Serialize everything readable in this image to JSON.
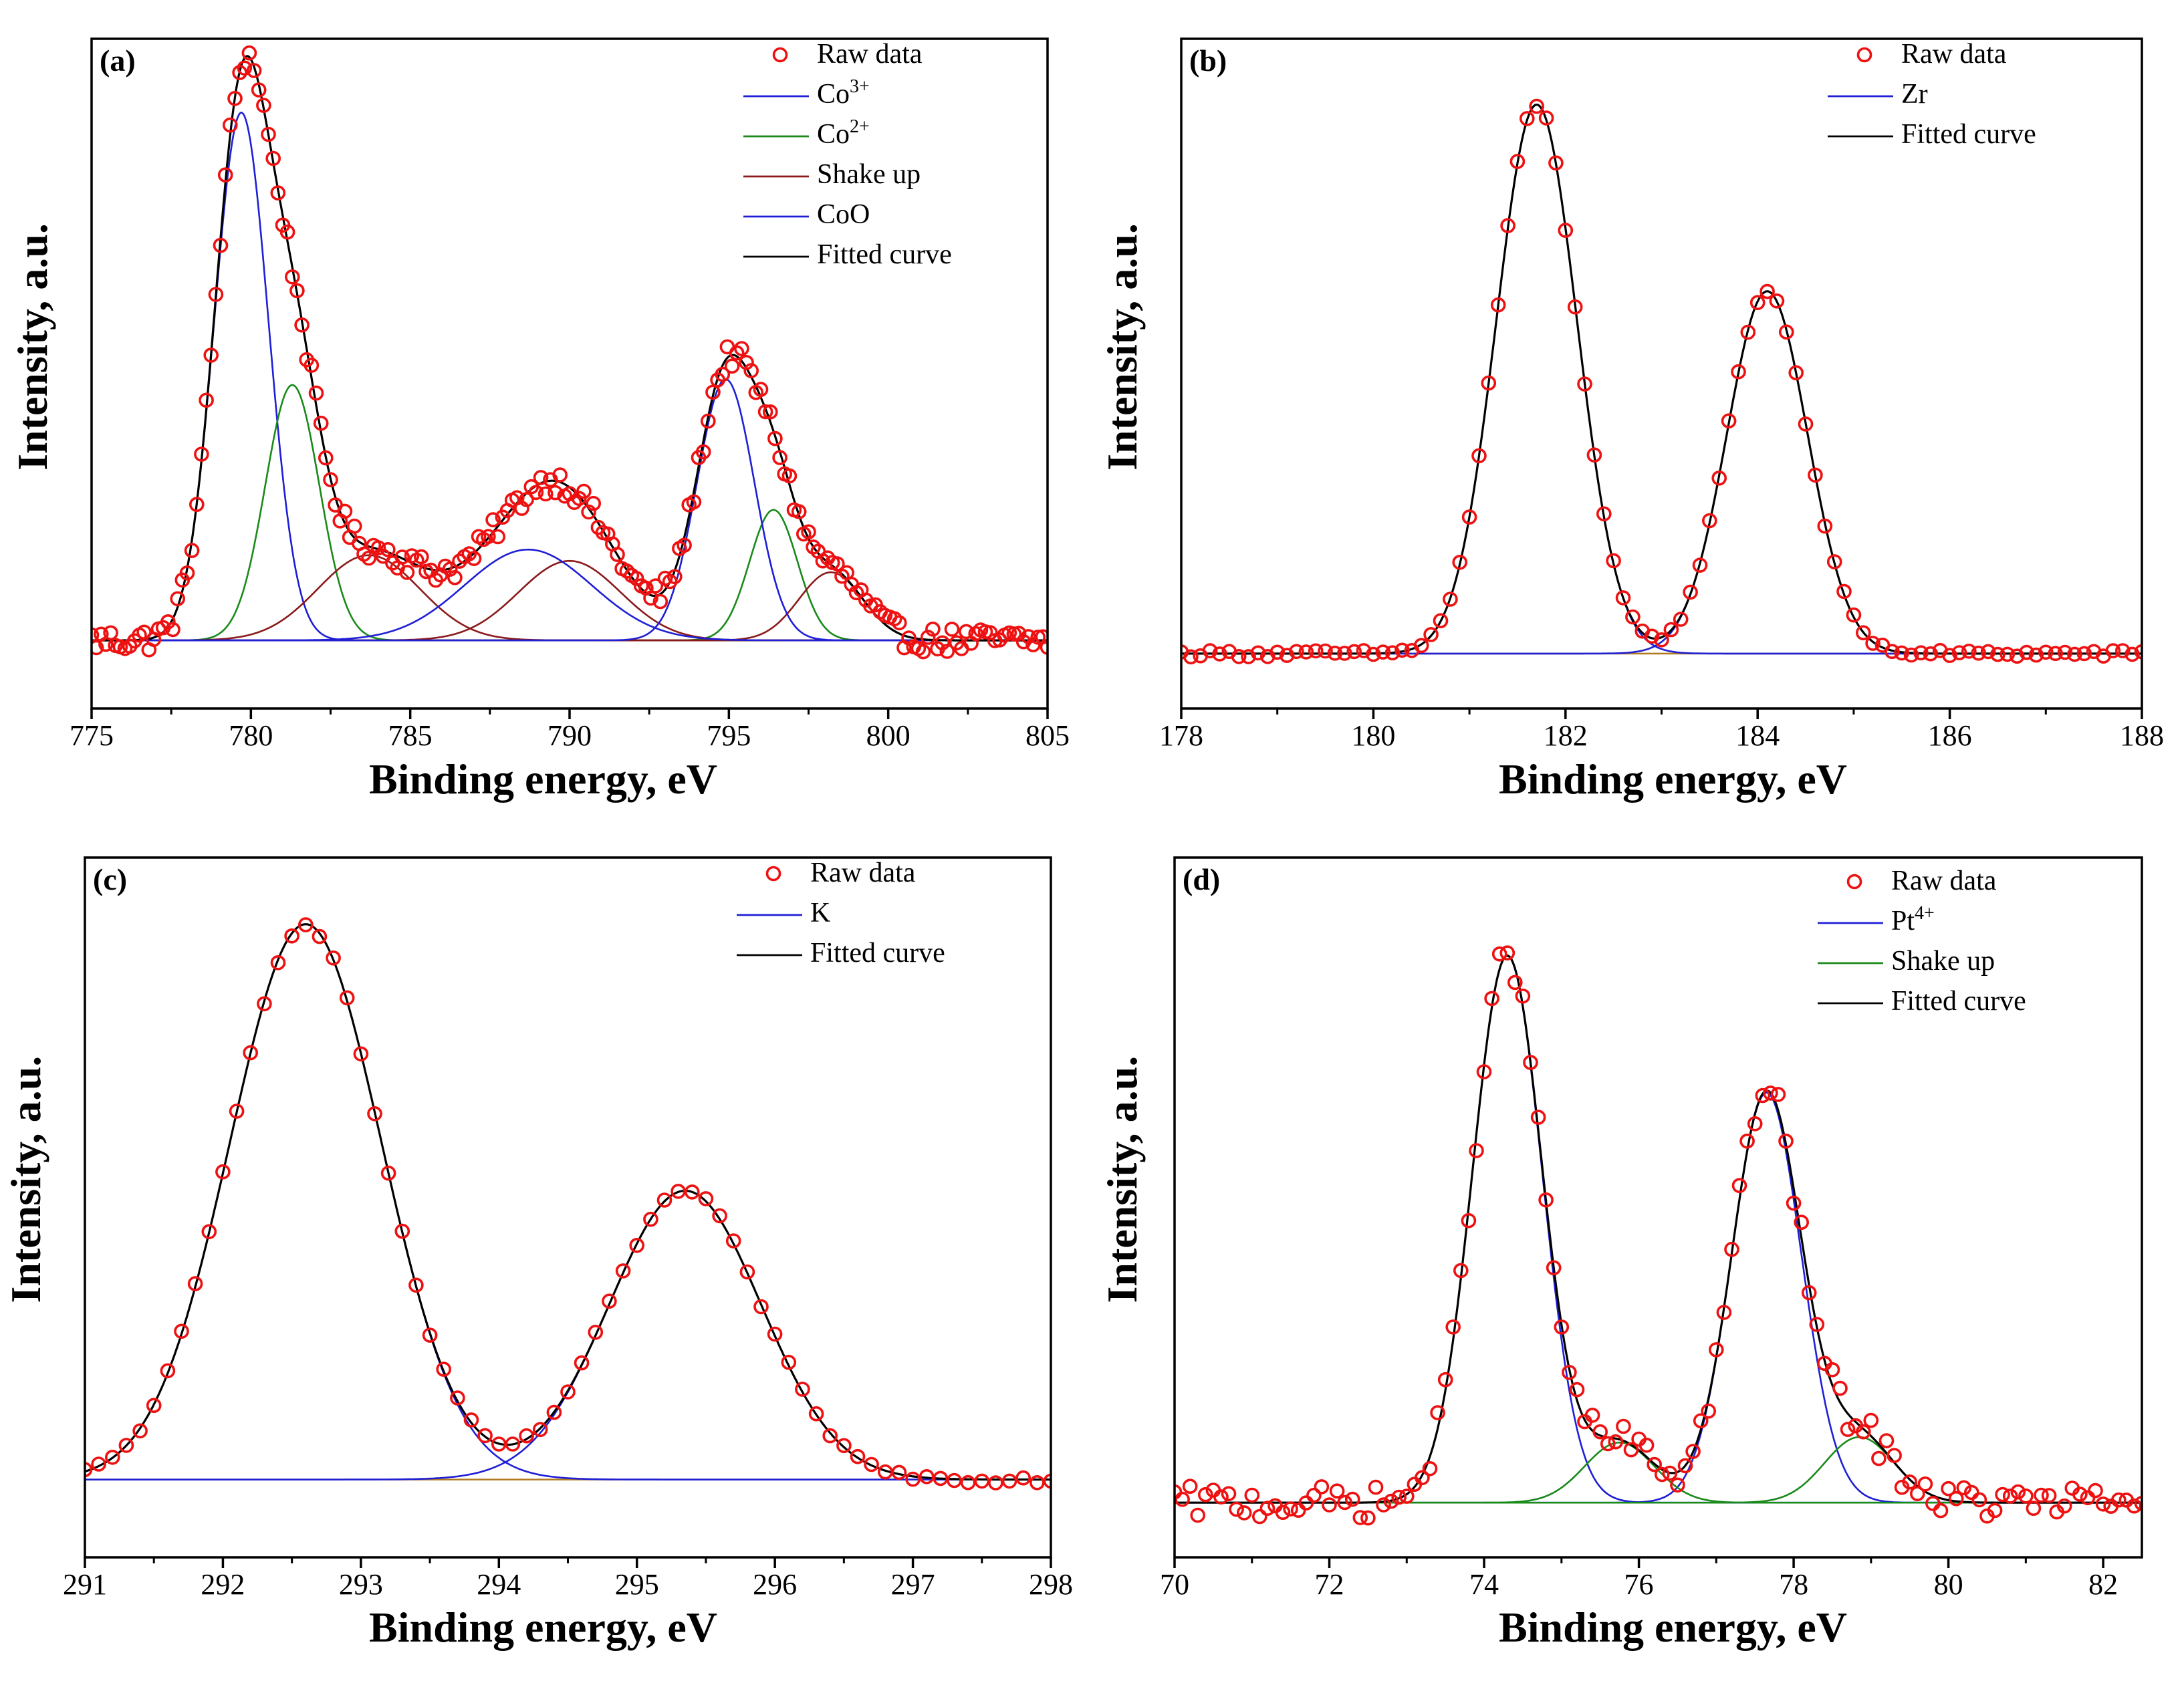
{
  "chart_data": [
    {
      "type": "line",
      "panel_label": "(a)",
      "xlabel": "Binding energy, eV",
      "ylabel": "Intensity, a.u.",
      "xlim": [
        775,
        805
      ],
      "ylim": [
        -0.12,
        1.06
      ],
      "xticks": [
        775,
        780,
        785,
        790,
        795,
        800,
        805
      ],
      "baseline": 0.0,
      "noise": 0.022,
      "legend_position": "top-right",
      "components": [
        {
          "name": "Co3+",
          "label_base": "Co",
          "label_sup": "3+",
          "color": "#1f1fd6",
          "peaks": [
            [
              779.7,
              0.93,
              0.85
            ]
          ]
        },
        {
          "name": "Co2+",
          "label_base": "Co",
          "label_sup": "2+",
          "color": "#1a8a1a",
          "peaks": [
            [
              781.3,
              0.45,
              0.85
            ],
            [
              796.4,
              0.23,
              0.75
            ]
          ]
        },
        {
          "name": "Shake up",
          "label_base": "Shake up",
          "label_sup": "",
          "color": "#8b1a1a",
          "peaks": [
            [
              783.7,
              0.15,
              1.6
            ],
            [
              790.0,
              0.14,
              1.6
            ],
            [
              798.2,
              0.12,
              1.0
            ]
          ]
        },
        {
          "name": "CoO",
          "label_base": "CoO",
          "label_sup": "",
          "color": "#1f1fd6",
          "peaks": [
            [
              788.7,
              0.16,
              2.0
            ],
            [
              794.9,
              0.46,
              0.9
            ]
          ]
        }
      ],
      "legend": [
        {
          "label_base": "Raw data",
          "label_sup": "",
          "kind": "marker",
          "color": "#ee1111"
        },
        {
          "label_base": "Co",
          "label_sup": "3+",
          "kind": "line",
          "color": "#1f1fd6"
        },
        {
          "label_base": "Co",
          "label_sup": "2+",
          "kind": "line",
          "color": "#1a8a1a"
        },
        {
          "label_base": "Shake up",
          "label_sup": "",
          "kind": "line",
          "color": "#8b1a1a"
        },
        {
          "label_base": "CoO",
          "label_sup": "",
          "kind": "line",
          "color": "#1f1fd6"
        },
        {
          "label_base": "Fitted curve",
          "label_sup": "",
          "kind": "line",
          "color": "#000000"
        }
      ],
      "raw_step": 0.15
    },
    {
      "type": "line",
      "panel_label": "(b)",
      "xlabel": "Binding energy, eV",
      "ylabel": "Intensity, a.u.",
      "xlim": [
        178,
        188
      ],
      "ylim": [
        -0.1,
        1.12
      ],
      "xticks": [
        178,
        180,
        182,
        184,
        186,
        188
      ],
      "baseline": 0.0,
      "noise": 0.006,
      "legend_position": "top-right",
      "components": [
        {
          "name": "Zr",
          "label_base": "Zr",
          "label_sup": "",
          "color": "#1f1fd6",
          "peaks": [
            [
              181.7,
              1.0,
              0.42
            ],
            [
              184.1,
              0.66,
              0.42
            ]
          ]
        }
      ],
      "legend": [
        {
          "label_base": "Raw data",
          "label_sup": "",
          "kind": "marker",
          "color": "#ee1111"
        },
        {
          "label_base": "Zr",
          "label_sup": "",
          "kind": "line",
          "color": "#1f1fd6"
        },
        {
          "label_base": "Fitted curve",
          "label_sup": "",
          "kind": "line",
          "color": "#000000"
        }
      ],
      "raw_step": 0.1
    },
    {
      "type": "line",
      "panel_label": "(c)",
      "xlabel": "Binding energy, eV",
      "ylabel": "Intensity, a.u.",
      "xlim": [
        291,
        298
      ],
      "ylim": [
        -0.14,
        1.12
      ],
      "xticks": [
        291,
        292,
        293,
        294,
        295,
        296,
        297,
        298
      ],
      "baseline": 0.0,
      "noise": 0.006,
      "legend_position": "top-right",
      "components": [
        {
          "name": "K",
          "label_base": "K",
          "label_sup": "",
          "color": "#1f1fd6",
          "peaks": [
            [
              292.6,
              1.0,
              0.55
            ],
            [
              295.35,
              0.52,
              0.55
            ]
          ]
        }
      ],
      "legend": [
        {
          "label_base": "Raw data",
          "label_sup": "",
          "kind": "marker",
          "color": "#ee1111"
        },
        {
          "label_base": "K",
          "label_sup": "",
          "kind": "line",
          "color": "#1f1fd6"
        },
        {
          "label_base": "Fitted curve",
          "label_sup": "",
          "kind": "line",
          "color": "#000000"
        }
      ],
      "raw_step": 0.1
    },
    {
      "type": "line",
      "panel_label": "(d)",
      "xlabel": "Binding energy, eV",
      "ylabel": "Intensity, a.u.",
      "xlim": [
        70,
        82.5
      ],
      "ylim": [
        -0.1,
        1.18
      ],
      "xticks": [
        70,
        72,
        74,
        76,
        78,
        80,
        82
      ],
      "baseline": 0.0,
      "noise": 0.03,
      "legend_position": "top-right",
      "components": [
        {
          "name": "Pt4+",
          "label_base": "Pt",
          "label_sup": "4+",
          "color": "#1f1fd6",
          "peaks": [
            [
              74.3,
              1.0,
              0.45
            ],
            [
              77.65,
              0.75,
              0.45
            ]
          ]
        },
        {
          "name": "Shake up",
          "label_base": "Shake up",
          "label_sup": "",
          "color": "#1a8a1a",
          "peaks": [
            [
              75.75,
              0.11,
              0.45
            ],
            [
              78.85,
              0.12,
              0.45
            ]
          ]
        }
      ],
      "legend": [
        {
          "label_base": "Raw data",
          "label_sup": "",
          "kind": "marker",
          "color": "#ee1111"
        },
        {
          "label_base": "Pt",
          "label_sup": "4+",
          "kind": "line",
          "color": "#1f1fd6"
        },
        {
          "label_base": "Shake up",
          "label_sup": "",
          "kind": "line",
          "color": "#1a8a1a"
        },
        {
          "label_base": "Fitted curve",
          "label_sup": "",
          "kind": "line",
          "color": "#000000"
        }
      ],
      "raw_step": 0.1
    }
  ]
}
